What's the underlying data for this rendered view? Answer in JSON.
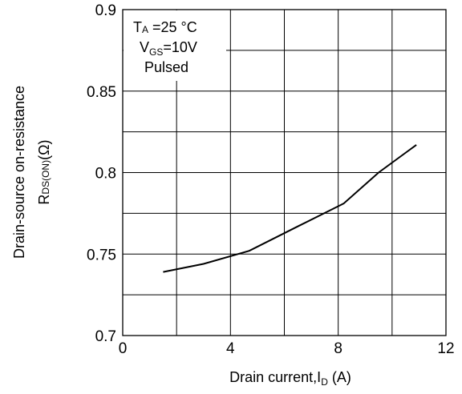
{
  "chart_data": {
    "type": "line",
    "title": "",
    "xlabel": "Drain current,I",
    "xlabel_sub": "D",
    "xlabel_unit": "(A)",
    "ylabel_line1": "Drain-source on-resistance",
    "ylabel_line2_main": "R",
    "ylabel_line2_sub": "DS(ON)",
    "ylabel_line2_unit": "(Ω)",
    "xlim": [
      0,
      12
    ],
    "ylim": [
      0.7,
      0.9
    ],
    "x_ticks": [
      0,
      4,
      8,
      12
    ],
    "x_tick_labels": [
      "0",
      "4",
      "8",
      "12"
    ],
    "y_ticks": [
      0.7,
      0.75,
      0.8,
      0.85,
      0.9
    ],
    "y_tick_labels": [
      "0.7",
      "0.75",
      "0.8",
      "0.85",
      "0.9"
    ],
    "grid": true,
    "x_grid_step": 2,
    "y_grid_step": 0.025,
    "annotations": {
      "temp_main": "T",
      "temp_sub": "A",
      "temp_rest": " =25 °C",
      "vgs_main": "V",
      "vgs_sub": "GS",
      "vgs_rest": "=10V",
      "pulsed": "Pulsed"
    },
    "series": [
      {
        "x": [
          1.5,
          3.0,
          4.7,
          6.5,
          8.2,
          9.5,
          10.9
        ],
        "y": [
          0.739,
          0.744,
          0.752,
          0.767,
          0.781,
          0.8,
          0.817
        ]
      }
    ]
  }
}
